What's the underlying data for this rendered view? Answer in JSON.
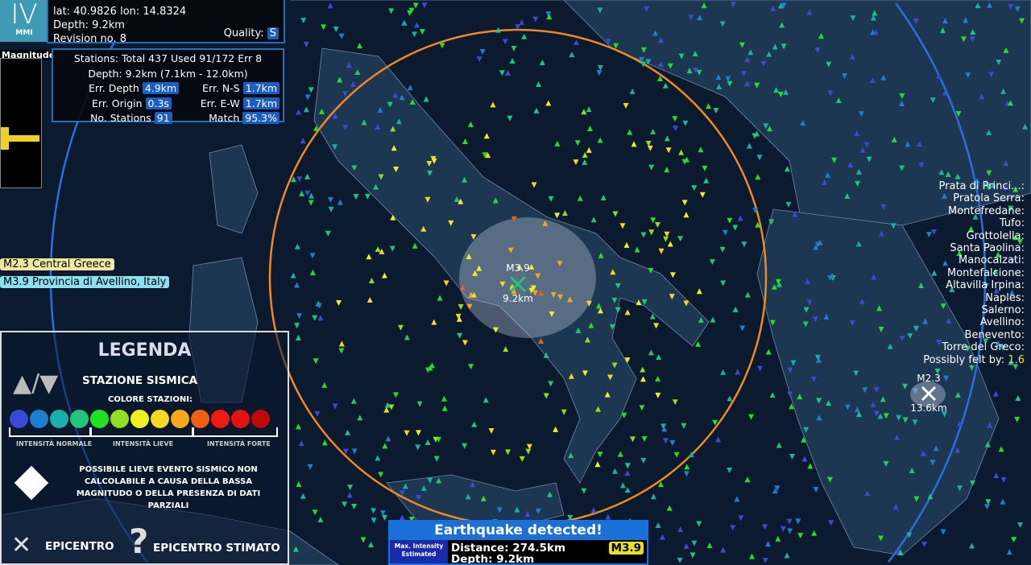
{
  "header": {
    "mmi_value": "IV",
    "mmi_label": "MMI",
    "lat_lon": "lat: 40.9826 lon: 14.8324",
    "depth": "Depth: 9.2km",
    "revision": "Revision no. 8",
    "quality_label": "Quality:",
    "quality_value": "S"
  },
  "magnitude_panel": {
    "title": "Magnitude"
  },
  "stats": {
    "stations": "Stations: Total 437 Used 91/172 Err 8",
    "depth_range": "Depth: 9.2km (7.1km - 12.0km)",
    "err_depth_label": "Err. Depth",
    "err_depth": "4.9km",
    "err_ns_label": "Err. N-S",
    "err_ns": "1.7km",
    "err_origin_label": "Err. Origin",
    "err_origin": "0.3s",
    "err_ew_label": "Err. E-W",
    "err_ew": "1.7km",
    "no_stations_label": "No. Stations",
    "no_stations": "91",
    "match_label": "Match",
    "match": "95.3%"
  },
  "events": [
    {
      "label": "M2.3 Central Greece",
      "color": "#f0e8a0"
    },
    {
      "label": "M3.9 Provincia di Avellino, Italy",
      "color": "#8ee0f0"
    }
  ],
  "epicenters": [
    {
      "mag": "M3.9",
      "depth": "9.2km"
    },
    {
      "mag": "M2.3",
      "depth": "13.6km"
    }
  ],
  "felt_list": [
    "Prata di Princi...:",
    "Pratola Serra:",
    "Montefredane:",
    "Tufo:",
    "Grottolella:",
    "Santa Paolina:",
    "Manocalzati:",
    "Montefalcione:",
    "Altavilla Irpina:",
    "Naples:",
    "Salerno:",
    "Avellino:",
    "Benevento:",
    "Torre del Greco:"
  ],
  "possibly_felt": {
    "label": "Possibly felt by:",
    "value": "1.6"
  },
  "legend": {
    "title": "LEGENDA",
    "station": "STAZIONE SISMICA",
    "colors_title": "COLORE STAZIONI:",
    "colors": [
      "#3a4ad8",
      "#1e7fd0",
      "#18b0a8",
      "#1ec878",
      "#22e022",
      "#8ee020",
      "#eef020",
      "#f8d820",
      "#f8a818",
      "#f06010",
      "#f01a10",
      "#e81010",
      "#c00808"
    ],
    "ranges": [
      "INTENSITÀ NORMALE",
      "INTENSITÀ LIEVE",
      "INTENSITÀ FORTE"
    ],
    "diamond_text": "POSSIBILE LIEVE EVENTO SISMICO NON CALCOLABILE A CAUSA DELLA BASSA MAGNITUDO O DELLA PRESENZA DI DATI PARZIALI",
    "epicentro": "EPICENTRO",
    "epicentro_stimato": "EPICENTRO STIMATO"
  },
  "alert": {
    "title": "Earthquake detected!",
    "max_intensity": "Max. Intensity Estimated",
    "distance": "Distance: 274.5km",
    "depth": "Depth: 9.2km",
    "magnitude": "M3.9"
  },
  "colors": {
    "wave_s": "#f08a20",
    "wave_p": "#2a6fe0",
    "background": "#0b1a2e",
    "land": "#1c3450"
  }
}
